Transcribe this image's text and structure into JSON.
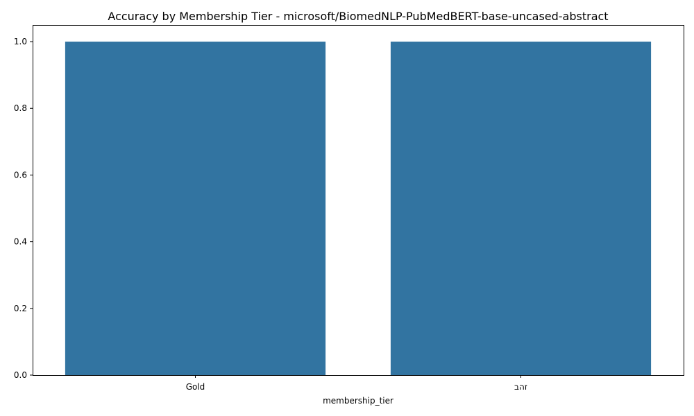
{
  "chart_data": {
    "type": "bar",
    "title": "Accuracy by Membership Tier - microsoft/BiomedNLP-PubMedBERT-base-uncased-abstract",
    "xlabel": "membership_tier",
    "ylabel": "",
    "categories": [
      "Gold",
      "זהב"
    ],
    "values": [
      1.0,
      1.0
    ],
    "ylim": [
      0,
      1.05
    ],
    "yticks": [
      "0.0",
      "0.2",
      "0.4",
      "0.6",
      "0.8",
      "1.0"
    ],
    "grid": false,
    "bar_color": "#3274a1"
  }
}
